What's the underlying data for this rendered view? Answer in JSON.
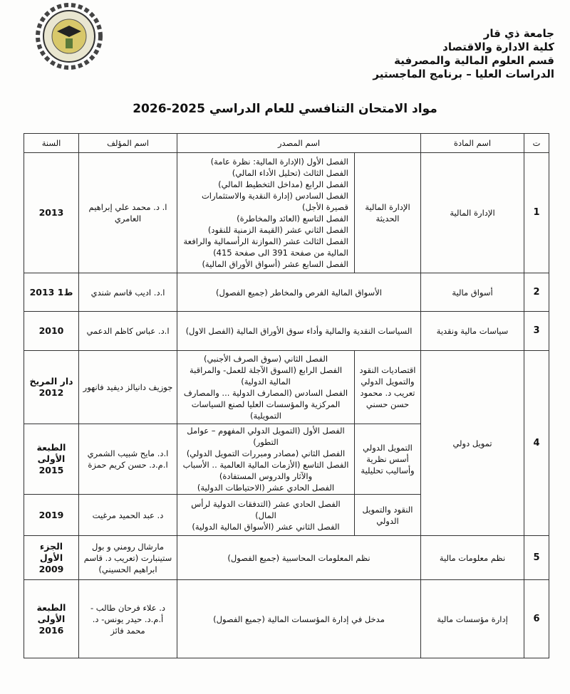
{
  "header": {
    "lines": [
      "جامعة ذي قار",
      "كلية الادارة والاقتصاد",
      "قسم العلوم المالية والمصرفية",
      "الدراسات العليا – برنامج الماجستير"
    ],
    "logo_text": "كلية الادارة والاقتصاد"
  },
  "title": "مواد الامتحان التنافسي للعام الدراسي 2025-2026",
  "table": {
    "headers": {
      "no": "ت",
      "subject": "اسم المادة",
      "source": "اسم المصدر",
      "author": "اسم المؤلف",
      "year": "السنة"
    },
    "rows": [
      {
        "no": "1",
        "subject": "الإدارة المالية",
        "source_title": "الإدارة المالية الحديثة",
        "chapters": [
          "الفصل الأول (الإدارة المالية: نظرة عامة)",
          "الفصل الثالث (تحليل الأداء المالي)",
          "الفصل الرابع (مداخل التخطيط المالي)",
          "الفصل السادس (إدارة النقدية والاستثمارات قصيرة الأجل)",
          "الفصل التاسع (العائد والمخاطرة)",
          "الفصل الثاني عشر (القيمة الزمنية للنقود)",
          "الفصل الثالث عشر (الموازنة الرأسمالية والرافعة المالية من صفحة 391 الى صفحة 415)",
          "الفصل السابع عشر (أسواق الأوراق المالية)"
        ],
        "author": "ا. د. محمد علي إبراهيم العامري",
        "year": "2013"
      },
      {
        "no": "2",
        "subject": "أسواق مالية",
        "source": "الأسواق المالية الفرص والمخاطر (جميع الفصول)",
        "author": "ا.د. اديب قاسم شندي",
        "year": "ط1 2013"
      },
      {
        "no": "3",
        "subject": "سياسات مالية ونقدية",
        "source": "السياسات النقدية والمالية وأداء سوق الأوراق المالية (الفصل الاول)",
        "author": "ا.د. عباس كاظم الدعمي",
        "year": "2010"
      },
      {
        "no": "4",
        "subject": "تمويل دولي",
        "sub": [
          {
            "source_title": "اقتصاديات النقود والتمويل الدولي تعريب د. محمود حسن حسني",
            "chapters": [
              "الفصل الثاني (سوق الصرف الأجنبي)",
              "الفصل الرابع (السوق الآجلة للعمل- والمراقبة المالية الدولية)",
              "الفصل السادس (المصارف الدولية ... والمصارف المركزية والمؤسسات العليا لصنع السياسات التمويلية)"
            ],
            "author": "جوزيف دانيالز ديفيد فانهور",
            "year": "دار المريخ 2012"
          },
          {
            "source_title": "التمويل الدولي أسس نظرية وأساليب تحليلية",
            "chapters": [
              "الفصل الأول (التمويل الدولي المفهوم – عوامل التطور)",
              "الفصل الثاني (مصادر ومبررات التمويل الدولي)",
              "الفصل التاسع (الأزمات المالية العالمية .. الأسباب والآثار والدروس المستفادة)",
              "الفصل الحادي عشر (الاحتياطات الدولية)"
            ],
            "author": "ا.د. مايح شبيب الشمري ا.م.د. حسن كريم حمزة",
            "year": "الطبعة الأولى 2015"
          },
          {
            "source_title": "النقود والتمويل الدولي",
            "chapters": [
              "الفصل الحادي عشر (التدفقات الدولية لرأس المال)",
              "الفصل الثاني عشر (الأسواق المالية الدولية)"
            ],
            "author": "د. عبد الحميد مرغيت",
            "year": "2019"
          }
        ]
      },
      {
        "no": "5",
        "subject": "نظم معلومات مالية",
        "source": "نظم المعلومات المحاسبية (جميع الفصول)",
        "author": "مارشال رومني و بول ستينبارت (تعريب د. قاسم ابراهيم الحسيني)",
        "year": "الجزء الأول 2009"
      },
      {
        "no": "6",
        "subject": "إدارة مؤسسات مالية",
        "source": "مدخل في إدارة المؤسسات المالية (جميع الفصول)",
        "author": "د. علاء فرحان طالب - أ.م.د. حيدر يونس- د. محمد فائز",
        "year": "الطبعة الأولى 2016"
      }
    ]
  }
}
